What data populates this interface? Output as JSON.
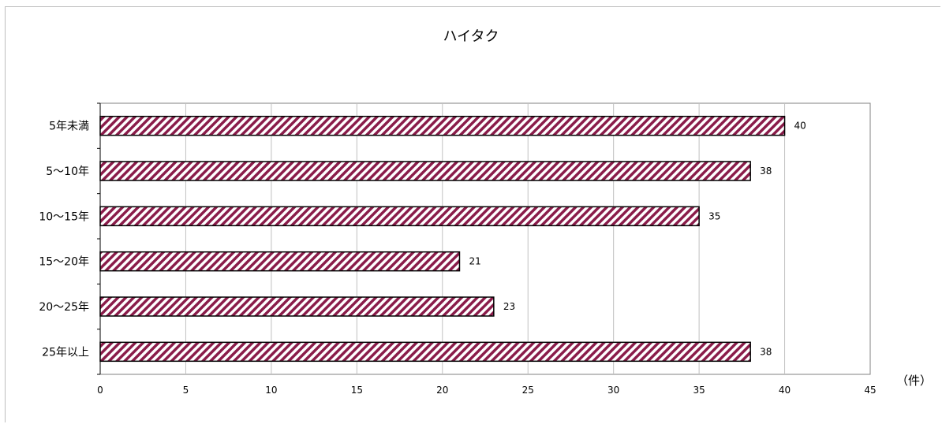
{
  "chart_data": {
    "type": "bar",
    "orientation": "horizontal",
    "title": "ハイタク",
    "categories": [
      "5年未満",
      "5～10年",
      "10～15年",
      "15～20年",
      "20～25年",
      "25年以上"
    ],
    "values": [
      40,
      38,
      35,
      21,
      23,
      38
    ],
    "data_labels": [
      "40",
      "38",
      "35",
      "21",
      "23",
      "38"
    ],
    "xlim": [
      0,
      45
    ],
    "x_ticks": [
      0,
      5,
      10,
      15,
      20,
      25,
      30,
      35,
      40,
      45
    ],
    "unit_label": "（件）",
    "grid": "vertical",
    "legend": "none",
    "colors": {
      "bar_stripe": "#8a1c4a",
      "bar_fill": "#ffffff",
      "bar_border": "#000000",
      "grid": "#c0c0c0"
    }
  }
}
